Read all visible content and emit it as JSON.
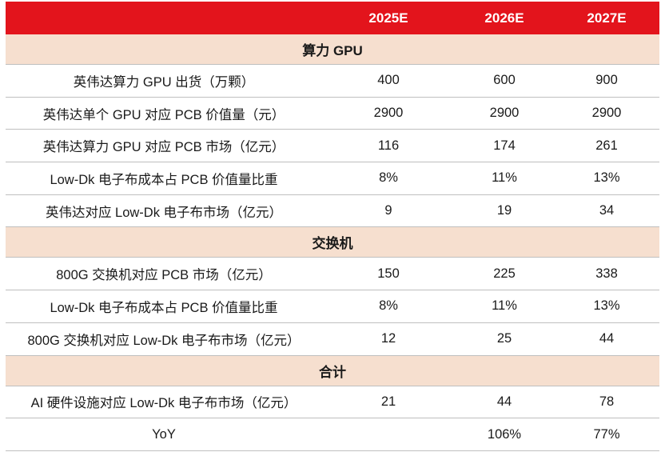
{
  "header": {
    "blank": "",
    "years": [
      "2025E",
      "2026E",
      "2027E"
    ]
  },
  "sections": [
    {
      "title": "算力 GPU",
      "rows": [
        {
          "label": "英伟达算力 GPU 出货（万颗）",
          "values": [
            "400",
            "600",
            "900"
          ]
        },
        {
          "label": "英伟达单个 GPU 对应 PCB 价值量（元）",
          "values": [
            "2900",
            "2900",
            "2900"
          ]
        },
        {
          "label": "英伟达算力 GPU 对应 PCB 市场（亿元）",
          "values": [
            "116",
            "174",
            "261"
          ]
        },
        {
          "label": "Low-Dk 电子布成本占 PCB 价值量比重",
          "values": [
            "8%",
            "11%",
            "13%"
          ]
        },
        {
          "label": "英伟达对应 Low-Dk 电子布市场（亿元）",
          "values": [
            "9",
            "19",
            "34"
          ]
        }
      ]
    },
    {
      "title": "交换机",
      "rows": [
        {
          "label": "800G 交换机对应 PCB 市场（亿元）",
          "values": [
            "150",
            "225",
            "338"
          ]
        },
        {
          "label": "Low-Dk 电子布成本占 PCB 价值量比重",
          "values": [
            "8%",
            "11%",
            "13%"
          ]
        },
        {
          "label": "800G 交换机对应 Low-Dk 电子布市场（亿元）",
          "values": [
            "12",
            "25",
            "44"
          ]
        }
      ]
    },
    {
      "title": "合计",
      "rows": [
        {
          "label": "AI 硬件设施对应 Low-Dk 电子布市场（亿元）",
          "values": [
            "21",
            "44",
            "78"
          ]
        },
        {
          "label": "YoY",
          "values": [
            "",
            "106%",
            "77%"
          ]
        }
      ]
    }
  ]
}
